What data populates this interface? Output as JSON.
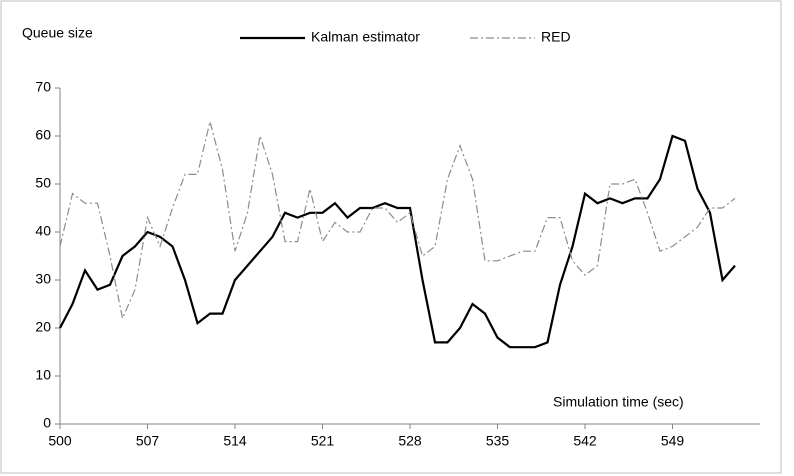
{
  "chart_data": {
    "type": "line",
    "y_label": "Queue size",
    "x_label": "Simulation time (sec)",
    "x": [
      500,
      501,
      502,
      503,
      504,
      505,
      506,
      507,
      508,
      509,
      510,
      511,
      512,
      513,
      514,
      515,
      516,
      517,
      518,
      519,
      520,
      521,
      522,
      523,
      524,
      525,
      526,
      527,
      528,
      529,
      530,
      531,
      532,
      533,
      534,
      535,
      536,
      537,
      538,
      539,
      540,
      541,
      542,
      543,
      544,
      545,
      546,
      547,
      548,
      549,
      550,
      551,
      552,
      553,
      554
    ],
    "series": [
      {
        "name": "Kalman estimator",
        "color": "#000000",
        "style": "solid",
        "values": [
          20,
          25,
          32,
          28,
          29,
          35,
          37,
          40,
          39,
          37,
          30,
          21,
          23,
          23,
          30,
          33,
          36,
          39,
          44,
          43,
          44,
          44,
          46,
          43,
          45,
          45,
          46,
          45,
          45,
          30,
          17,
          17,
          20,
          25,
          23,
          18,
          16,
          16,
          16,
          17,
          29,
          37,
          48,
          46,
          47,
          46,
          47,
          47,
          51,
          60,
          59,
          49,
          44,
          30,
          33
        ]
      },
      {
        "name": "RED",
        "color": "#8c8c8c",
        "style": "dashdot",
        "values": [
          37,
          48,
          46,
          46,
          35,
          22,
          28,
          43,
          37,
          45,
          52,
          52,
          63,
          53,
          36,
          44,
          60,
          52,
          38,
          38,
          49,
          38,
          42,
          40,
          40,
          45,
          45,
          42,
          44,
          35,
          37,
          51,
          58,
          51,
          34,
          34,
          35,
          36,
          36,
          43,
          43,
          34,
          31,
          33,
          50,
          50,
          51,
          44,
          36,
          37,
          39,
          41,
          45,
          45,
          47
        ]
      }
    ],
    "xlim": [
      500,
      556
    ],
    "xticks": [
      500,
      507,
      514,
      521,
      528,
      535,
      542,
      549
    ],
    "ylim": [
      0,
      70
    ],
    "yticks": [
      0,
      10,
      20,
      30,
      40,
      50,
      60,
      70
    ],
    "grid": false
  }
}
